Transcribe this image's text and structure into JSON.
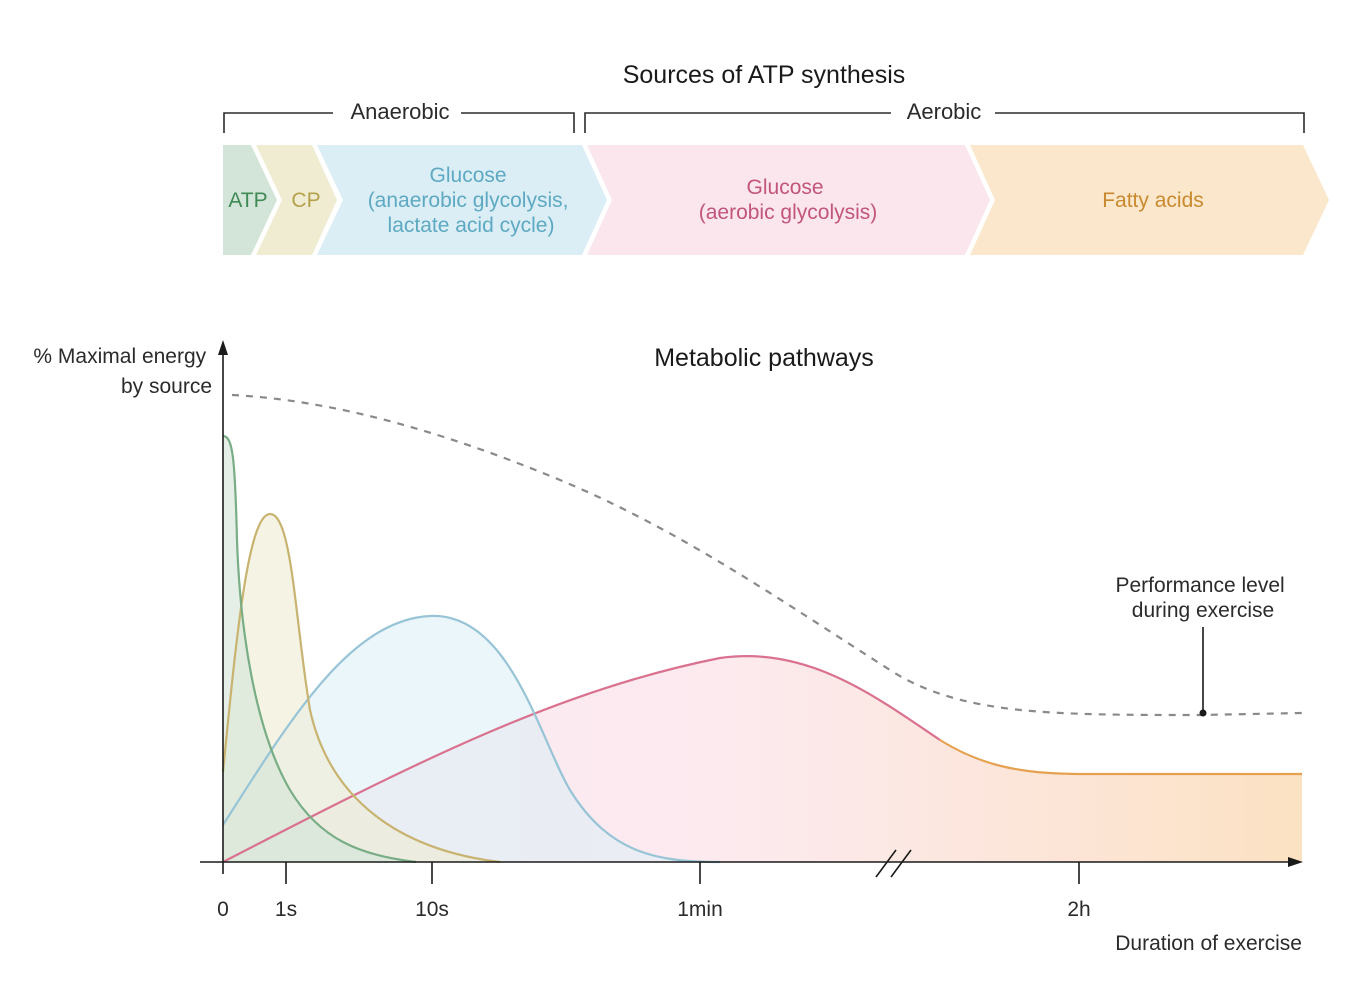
{
  "header": {
    "title": "Sources of ATP synthesis",
    "anaerobic_label": "Anaerobic",
    "aerobic_label": "Aerobic"
  },
  "stages": {
    "atp": {
      "label": "ATP",
      "color": "#3f8a55",
      "fill": "#d3e5d8"
    },
    "cp": {
      "label": "CP",
      "color": "#b5a14c",
      "fill": "#efecd2"
    },
    "glucose_anaerobic": {
      "lines": [
        "Glucose",
        "(anaerobic glycolysis,",
        "lactate acid cycle)"
      ],
      "color": "#5ea9c2",
      "fill": "#dbeef6"
    },
    "glucose_aerobic": {
      "lines": [
        "Glucose",
        "(aerobic glycolysis)"
      ],
      "color": "#c2557c",
      "fill": "#fbe6ee"
    },
    "fatty_acids": {
      "label": "Fatty acids",
      "color": "#c98a2f",
      "fill": "#fbe7cc"
    }
  },
  "chart": {
    "title": "Metabolic pathways",
    "y_label_lines": [
      "% Maximal energy",
      "by source"
    ],
    "x_label": "Duration of exercise",
    "ticks": [
      "0",
      "1s",
      "10s",
      "1min",
      "2h"
    ],
    "performance_label_lines": [
      "Performance level",
      "during exercise"
    ],
    "colors": {
      "atp": "#79ad86",
      "cp": "#c8b370",
      "glucose_anaerobic": "#97c4d6",
      "glucose_aerobic": "#d9718f",
      "fatty_acids": "#e5a150",
      "performance": "#8a8a8a",
      "axis": "#1a1a1a"
    }
  }
}
